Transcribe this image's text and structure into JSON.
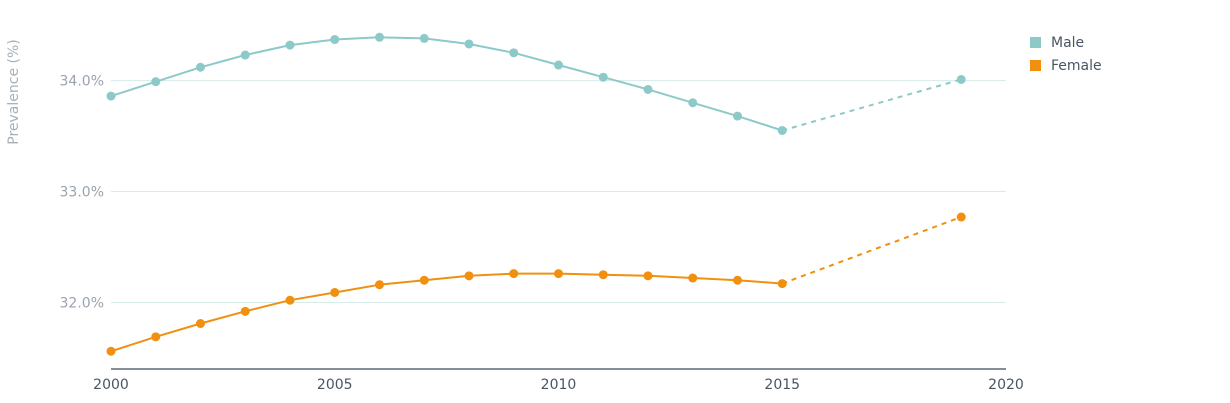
{
  "chart_data": {
    "type": "line",
    "title": "",
    "xlabel": "",
    "ylabel": "Prevalence (%)",
    "xlim": [
      2000,
      2020
    ],
    "ylim": [
      31.4,
      34.6
    ],
    "x_ticks": [
      {
        "value": 2000,
        "label": "2000"
      },
      {
        "value": 2005,
        "label": "2005"
      },
      {
        "value": 2010,
        "label": "2010"
      },
      {
        "value": 2015,
        "label": "2015"
      },
      {
        "value": 2020,
        "label": "2020"
      }
    ],
    "y_ticks": [
      {
        "value": 32.0,
        "label": "32.0%"
      },
      {
        "value": 33.0,
        "label": "33.0%"
      },
      {
        "value": 34.0,
        "label": "34.0%"
      }
    ],
    "grid": "horizontal",
    "legend_position": "top-right",
    "series": [
      {
        "name": "Male",
        "color": "#8ec9c9",
        "x": [
          2000,
          2001,
          2002,
          2003,
          2004,
          2005,
          2006,
          2007,
          2008,
          2009,
          2010,
          2011,
          2012,
          2013,
          2014,
          2015
        ],
        "y": [
          33.86,
          33.99,
          34.12,
          34.23,
          34.32,
          34.37,
          34.39,
          34.38,
          34.33,
          34.25,
          34.14,
          34.03,
          33.92,
          33.8,
          33.68,
          33.55
        ],
        "projection": {
          "x": [
            2015,
            2019
          ],
          "y": [
            33.55,
            34.01
          ]
        }
      },
      {
        "name": "Female",
        "color": "#f0900e",
        "x": [
          2000,
          2001,
          2002,
          2003,
          2004,
          2005,
          2006,
          2007,
          2008,
          2009,
          2010,
          2011,
          2012,
          2013,
          2014,
          2015
        ],
        "y": [
          31.56,
          31.69,
          31.81,
          31.92,
          32.02,
          32.09,
          32.16,
          32.2,
          32.24,
          32.26,
          32.26,
          32.25,
          32.24,
          32.22,
          32.2,
          32.17
        ],
        "projection": {
          "x": [
            2015,
            2019
          ],
          "y": [
            32.17,
            32.77
          ]
        }
      }
    ]
  }
}
